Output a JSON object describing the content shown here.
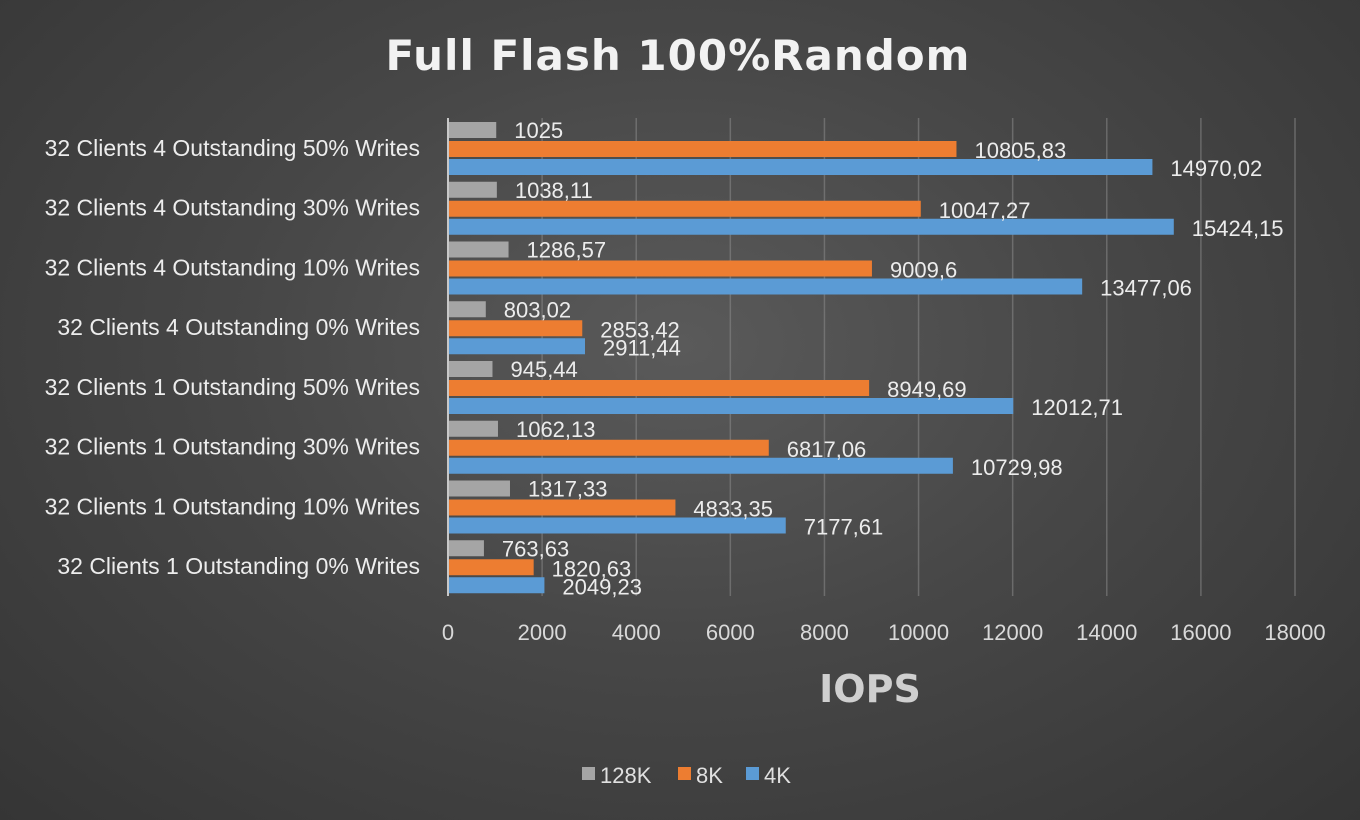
{
  "chart_data": {
    "type": "bar",
    "orientation": "horizontal",
    "title": "Full Flash 100%Random",
    "xlabel": "IOPS",
    "ylabel": "",
    "xlim": [
      0,
      18000
    ],
    "xticks": [
      0,
      2000,
      4000,
      6000,
      8000,
      10000,
      12000,
      14000,
      16000,
      18000
    ],
    "grid": true,
    "legend_position": "bottom",
    "categories": [
      "32 Clients 4 Outstanding 50% Writes",
      "32 Clients 4 Outstanding 30% Writes",
      "32 Clients 4 Outstanding 10% Writes",
      "32 Clients 4 Outstanding 0% Writes",
      "32 Clients 1 Outstanding 50% Writes",
      "32 Clients 1 Outstanding 30% Writes",
      "32 Clients 1 Outstanding 10% Writes",
      "32 Clients 1 Outstanding 0% Writes"
    ],
    "series": [
      {
        "name": "128K",
        "color": "#a5a5a5",
        "values": [
          1025,
          1038.11,
          1286.57,
          803.02,
          945.44,
          1062.13,
          1317.33,
          763.63
        ],
        "labels": [
          "1025",
          "1038,11",
          "1286,57",
          "803,02",
          "945,44",
          "1062,13",
          "1317,33",
          "763,63"
        ]
      },
      {
        "name": "8K",
        "color": "#ed7d31",
        "values": [
          10805.83,
          10047.27,
          9009.6,
          2853.42,
          8949.69,
          6817.06,
          4833.35,
          1820.63
        ],
        "labels": [
          "10805,83",
          "10047,27",
          "9009,6",
          "2853,42",
          "8949,69",
          "6817,06",
          "4833,35",
          "1820,63"
        ]
      },
      {
        "name": "4K",
        "color": "#5b9bd5",
        "values": [
          14970.02,
          15424.15,
          13477.06,
          2911.44,
          12012.71,
          10729.98,
          7177.61,
          2049.23
        ],
        "labels": [
          "14970,02",
          "15424,15",
          "13477,06",
          "2911,44",
          "12012,71",
          "10729,98",
          "7177,61",
          "2049,23"
        ]
      }
    ]
  }
}
